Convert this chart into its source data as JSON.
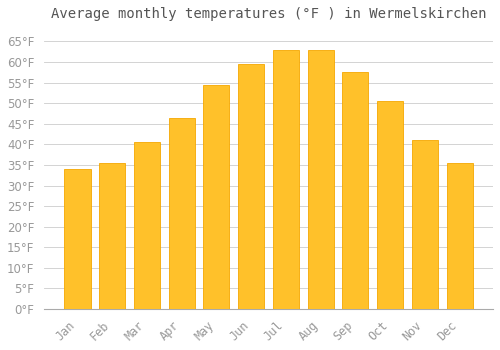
{
  "title": "Average monthly temperatures (°F ) in Wermelskirchen",
  "months": [
    "Jan",
    "Feb",
    "Mar",
    "Apr",
    "May",
    "Jun",
    "Jul",
    "Aug",
    "Sep",
    "Oct",
    "Nov",
    "Dec"
  ],
  "values": [
    34,
    35.5,
    40.5,
    46.5,
    54.5,
    59.5,
    63,
    63,
    57.5,
    50.5,
    41,
    35.5
  ],
  "bar_color": "#FFC12A",
  "bar_edge_color": "#F5A800",
  "background_color": "#FFFFFF",
  "grid_color": "#CCCCCC",
  "text_color": "#999999",
  "title_color": "#555555",
  "ylim": [
    0,
    68
  ],
  "yticks": [
    0,
    5,
    10,
    15,
    20,
    25,
    30,
    35,
    40,
    45,
    50,
    55,
    60,
    65
  ],
  "title_fontsize": 10,
  "tick_fontsize": 8.5,
  "bar_width": 0.75
}
